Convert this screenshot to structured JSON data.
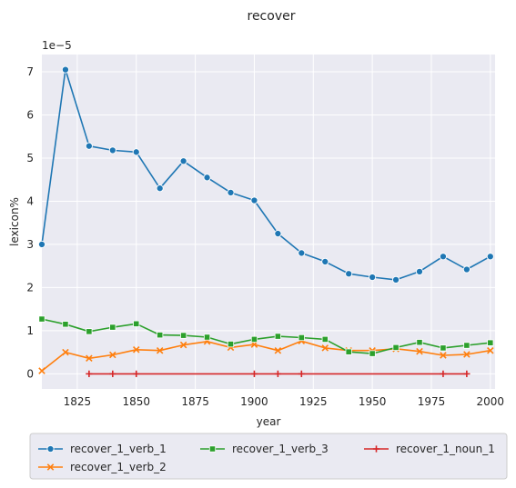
{
  "chart_data": {
    "type": "line",
    "title": "recover",
    "xlabel": "year",
    "ylabel": "lexicon%",
    "y_scale_note": "1e−5",
    "xlim": [
      1810,
      2002
    ],
    "ylim": [
      -0.35,
      7.4
    ],
    "x_ticks": [
      1825,
      1850,
      1875,
      1900,
      1925,
      1950,
      1975,
      2000
    ],
    "y_ticks": [
      0,
      1,
      2,
      3,
      4,
      5,
      6,
      7
    ],
    "grid": true,
    "legend_placement": "bottom",
    "series": [
      {
        "name": "recover_1_verb_1",
        "color": "#1f77b4",
        "marker": "circle",
        "x": [
          1810,
          1820,
          1830,
          1840,
          1850,
          1860,
          1870,
          1880,
          1890,
          1900,
          1910,
          1920,
          1930,
          1940,
          1950,
          1960,
          1970,
          1980,
          1990,
          2000
        ],
        "y": [
          3.0,
          7.05,
          5.28,
          5.18,
          5.14,
          4.3,
          4.93,
          4.55,
          4.2,
          4.02,
          3.25,
          2.8,
          2.6,
          2.32,
          2.24,
          2.18,
          2.37,
          2.72,
          2.42,
          2.72
        ]
      },
      {
        "name": "recover_1_verb_2",
        "color": "#ff7f0e",
        "marker": "x",
        "x": [
          1810,
          1820,
          1830,
          1840,
          1850,
          1860,
          1870,
          1880,
          1890,
          1900,
          1910,
          1920,
          1930,
          1940,
          1950,
          1960,
          1970,
          1980,
          1990,
          2000
        ],
        "y": [
          0.07,
          0.5,
          0.36,
          0.44,
          0.56,
          0.54,
          0.67,
          0.75,
          0.61,
          0.68,
          0.54,
          0.76,
          0.6,
          0.54,
          0.54,
          0.58,
          0.52,
          0.43,
          0.45,
          0.54
        ]
      },
      {
        "name": "recover_1_verb_3",
        "color": "#2ca02c",
        "marker": "square",
        "x": [
          1810,
          1820,
          1830,
          1840,
          1850,
          1860,
          1870,
          1880,
          1890,
          1900,
          1910,
          1920,
          1930,
          1940,
          1950,
          1960,
          1970,
          1980,
          1990,
          2000
        ],
        "y": [
          1.27,
          1.15,
          0.98,
          1.08,
          1.16,
          0.9,
          0.89,
          0.85,
          0.69,
          0.8,
          0.87,
          0.84,
          0.8,
          0.51,
          0.47,
          0.61,
          0.73,
          0.6,
          0.66,
          0.72
        ]
      },
      {
        "name": "recover_1_noun_1",
        "color": "#d62728",
        "marker": "plus",
        "x": [
          1830,
          1840,
          1850,
          1900,
          1910,
          1920,
          1980,
          1990
        ],
        "y": [
          0.0,
          0.0,
          0.0,
          0.0,
          0.0,
          0.0,
          0.0,
          0.0
        ]
      }
    ]
  }
}
